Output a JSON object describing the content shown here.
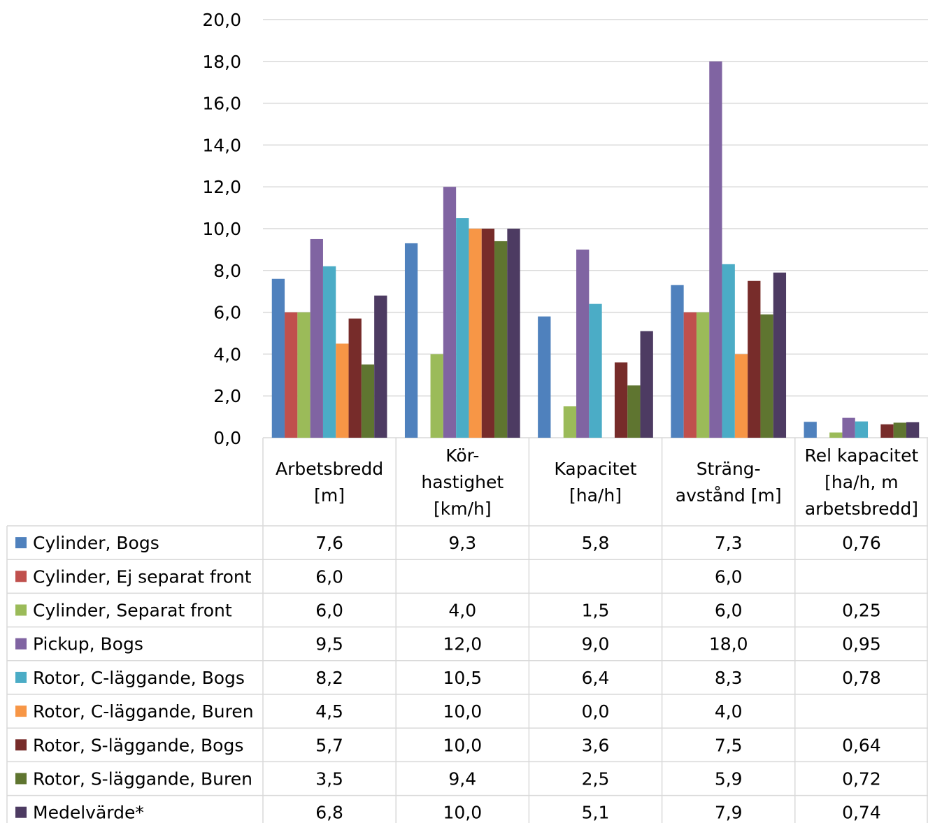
{
  "chart_data": {
    "type": "bar",
    "categories": [
      [
        "Arbetsbredd",
        "[m]"
      ],
      [
        "Kör-",
        "hastighet",
        "[km/h]"
      ],
      [
        "Kapacitet",
        "[ha/h]"
      ],
      [
        "Sträng-",
        "avstånd [m]"
      ],
      [
        "Rel kapacitet",
        "[ha/h, m",
        "arbetsbredd]"
      ]
    ],
    "ylim": [
      0,
      20
    ],
    "yticks": [
      "0,0",
      "2,0",
      "4,0",
      "6,0",
      "8,0",
      "10,0",
      "12,0",
      "14,0",
      "16,0",
      "18,0",
      "20,0"
    ],
    "grid": true,
    "legend": "data-table-left",
    "series": [
      {
        "name": "Cylinder, Bogs",
        "color": "#4F81BD",
        "values": [
          7.6,
          9.3,
          5.8,
          7.3,
          0.76
        ],
        "labels": [
          "7,6",
          "9,3",
          "5,8",
          "7,3",
          "0,76"
        ]
      },
      {
        "name": "Cylinder, Ej separat front",
        "color": "#C0504D",
        "values": [
          6.0,
          null,
          null,
          6.0,
          null
        ],
        "labels": [
          "6,0",
          "",
          "",
          "6,0",
          ""
        ]
      },
      {
        "name": "Cylinder, Separat front",
        "color": "#9BBB59",
        "values": [
          6.0,
          4.0,
          1.5,
          6.0,
          0.25
        ],
        "labels": [
          "6,0",
          "4,0",
          "1,5",
          "6,0",
          "0,25"
        ]
      },
      {
        "name": "Pickup, Bogs",
        "color": "#8064A2",
        "values": [
          9.5,
          12.0,
          9.0,
          18.0,
          0.95
        ],
        "labels": [
          "9,5",
          "12,0",
          "9,0",
          "18,0",
          "0,95"
        ]
      },
      {
        "name": "Rotor, C-läggande, Bogs",
        "color": "#4BACC6",
        "values": [
          8.2,
          10.5,
          6.4,
          8.3,
          0.78
        ],
        "labels": [
          "8,2",
          "10,5",
          "6,4",
          "8,3",
          "0,78"
        ]
      },
      {
        "name": "Rotor, C-läggande, Buren",
        "color": "#F79646",
        "values": [
          4.5,
          10.0,
          0.0,
          4.0,
          null
        ],
        "labels": [
          "4,5",
          "10,0",
          "0,0",
          "4,0",
          ""
        ]
      },
      {
        "name": "Rotor, S-läggande, Bogs",
        "color": "#772C2A",
        "values": [
          5.7,
          10.0,
          3.6,
          7.5,
          0.64
        ],
        "labels": [
          "5,7",
          "10,0",
          "3,6",
          "7,5",
          "0,64"
        ]
      },
      {
        "name": "Rotor, S-läggande, Buren",
        "color": "#5F7530",
        "values": [
          3.5,
          9.4,
          2.5,
          5.9,
          0.72
        ],
        "labels": [
          "3,5",
          "9,4",
          "2,5",
          "5,9",
          "0,72"
        ]
      },
      {
        "name": "Medelvärde*",
        "color": "#4D3B62",
        "values": [
          6.8,
          10.0,
          5.1,
          7.9,
          0.74
        ],
        "labels": [
          "6,8",
          "10,0",
          "5,1",
          "7,9",
          "0,74"
        ]
      }
    ]
  }
}
